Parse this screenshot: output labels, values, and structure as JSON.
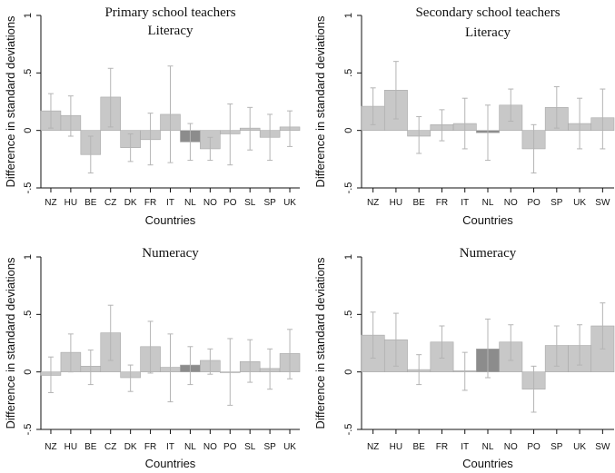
{
  "colors": {
    "bar": "#c8c8c8",
    "bar_highlight": "#8c8c8c",
    "bar_stroke": "#a8a8a8",
    "error_bar": "#b4b4b4",
    "axis": "#111111"
  },
  "chart_data": [
    {
      "type": "bar",
      "title": "Primary school teachers",
      "subtitle": "Literacy",
      "xlabel": "Countries",
      "ylabel": "Difference in standard deviations",
      "ylim": [
        -0.5,
        1
      ],
      "yticks": [
        -0.5,
        0,
        0.5,
        1
      ],
      "ytick_labels": [
        "-.5",
        "0",
        ".5",
        "1"
      ],
      "categories": [
        "NZ",
        "HU",
        "BE",
        "CZ",
        "DK",
        "FR",
        "IT",
        "NL",
        "NO",
        "PO",
        "SL",
        "SP",
        "UK"
      ],
      "values": [
        0.17,
        0.13,
        -0.21,
        0.29,
        -0.15,
        -0.08,
        0.14,
        -0.1,
        -0.16,
        -0.03,
        0.02,
        -0.06,
        0.03
      ],
      "ci_low": [
        0.02,
        -0.05,
        -0.37,
        0.03,
        -0.27,
        -0.3,
        -0.28,
        -0.26,
        -0.26,
        -0.3,
        -0.17,
        -0.26,
        -0.14
      ],
      "ci_high": [
        0.32,
        0.3,
        -0.05,
        0.54,
        -0.03,
        0.15,
        0.56,
        0.06,
        -0.06,
        0.23,
        0.2,
        0.14,
        0.17
      ],
      "highlight": [
        "NL"
      ]
    },
    {
      "type": "bar",
      "title": "Secondary school teachers",
      "subtitle": "Literacy",
      "xlabel": "Countries",
      "ylabel": "Difference in standard deviations",
      "ylim": [
        -0.5,
        1
      ],
      "yticks": [
        -0.5,
        0,
        0.5,
        1
      ],
      "ytick_labels": [
        "-.5",
        "0",
        ".5",
        "1"
      ],
      "categories": [
        "NZ",
        "HU",
        "BE",
        "FR",
        "IT",
        "NL",
        "NO",
        "PO",
        "SP",
        "UK",
        "SW"
      ],
      "values": [
        0.21,
        0.35,
        -0.05,
        0.05,
        0.06,
        -0.02,
        0.22,
        -0.16,
        0.2,
        0.06,
        0.11
      ],
      "ci_low": [
        0.05,
        0.1,
        -0.2,
        -0.09,
        -0.16,
        -0.26,
        0.08,
        -0.37,
        0.02,
        -0.16,
        -0.16
      ],
      "ci_high": [
        0.37,
        0.6,
        0.12,
        0.18,
        0.28,
        0.22,
        0.36,
        0.05,
        0.38,
        0.28,
        0.36
      ],
      "highlight": [
        "NL"
      ]
    },
    {
      "type": "bar",
      "title": "",
      "subtitle": "Numeracy",
      "xlabel": "Countries",
      "ylabel": "Difference in standard deviations",
      "ylim": [
        -0.5,
        1
      ],
      "yticks": [
        -0.5,
        0,
        0.5,
        1
      ],
      "ytick_labels": [
        "-.5",
        "0",
        ".5",
        "1"
      ],
      "categories": [
        "NZ",
        "HU",
        "BE",
        "CZ",
        "DK",
        "FR",
        "IT",
        "NL",
        "NO",
        "PO",
        "SL",
        "SP",
        "UK"
      ],
      "values": [
        -0.03,
        0.17,
        0.05,
        0.34,
        -0.05,
        0.22,
        0.04,
        0.06,
        0.1,
        0.0,
        0.09,
        0.03,
        0.16
      ],
      "ci_low": [
        -0.18,
        0.0,
        -0.11,
        0.1,
        -0.17,
        -0.01,
        -0.26,
        -0.11,
        -0.02,
        -0.29,
        -0.09,
        -0.15,
        -0.06
      ],
      "ci_high": [
        0.13,
        0.33,
        0.19,
        0.58,
        0.06,
        0.44,
        0.33,
        0.22,
        0.2,
        0.29,
        0.28,
        0.2,
        0.37
      ],
      "highlight": [
        "NL"
      ]
    },
    {
      "type": "bar",
      "title": "",
      "subtitle": "Numeracy",
      "xlabel": "Countries",
      "ylabel": "Difference in standard deviations",
      "ylim": [
        -0.5,
        1
      ],
      "yticks": [
        -0.5,
        0,
        0.5,
        1
      ],
      "ytick_labels": [
        "-.5",
        "0",
        ".5",
        "1"
      ],
      "categories": [
        "NZ",
        "HU",
        "BE",
        "FR",
        "IT",
        "NL",
        "NO",
        "PO",
        "SP",
        "UK",
        "SW"
      ],
      "values": [
        0.32,
        0.28,
        0.02,
        0.26,
        0.01,
        0.2,
        0.26,
        -0.15,
        0.23,
        0.23,
        0.4
      ],
      "ci_low": [
        0.12,
        0.05,
        -0.11,
        0.12,
        -0.16,
        -0.05,
        0.1,
        -0.35,
        0.05,
        0.06,
        0.2
      ],
      "ci_high": [
        0.52,
        0.51,
        0.15,
        0.4,
        0.17,
        0.46,
        0.41,
        0.05,
        0.4,
        0.41,
        0.6
      ],
      "highlight": [
        "NL"
      ]
    }
  ]
}
